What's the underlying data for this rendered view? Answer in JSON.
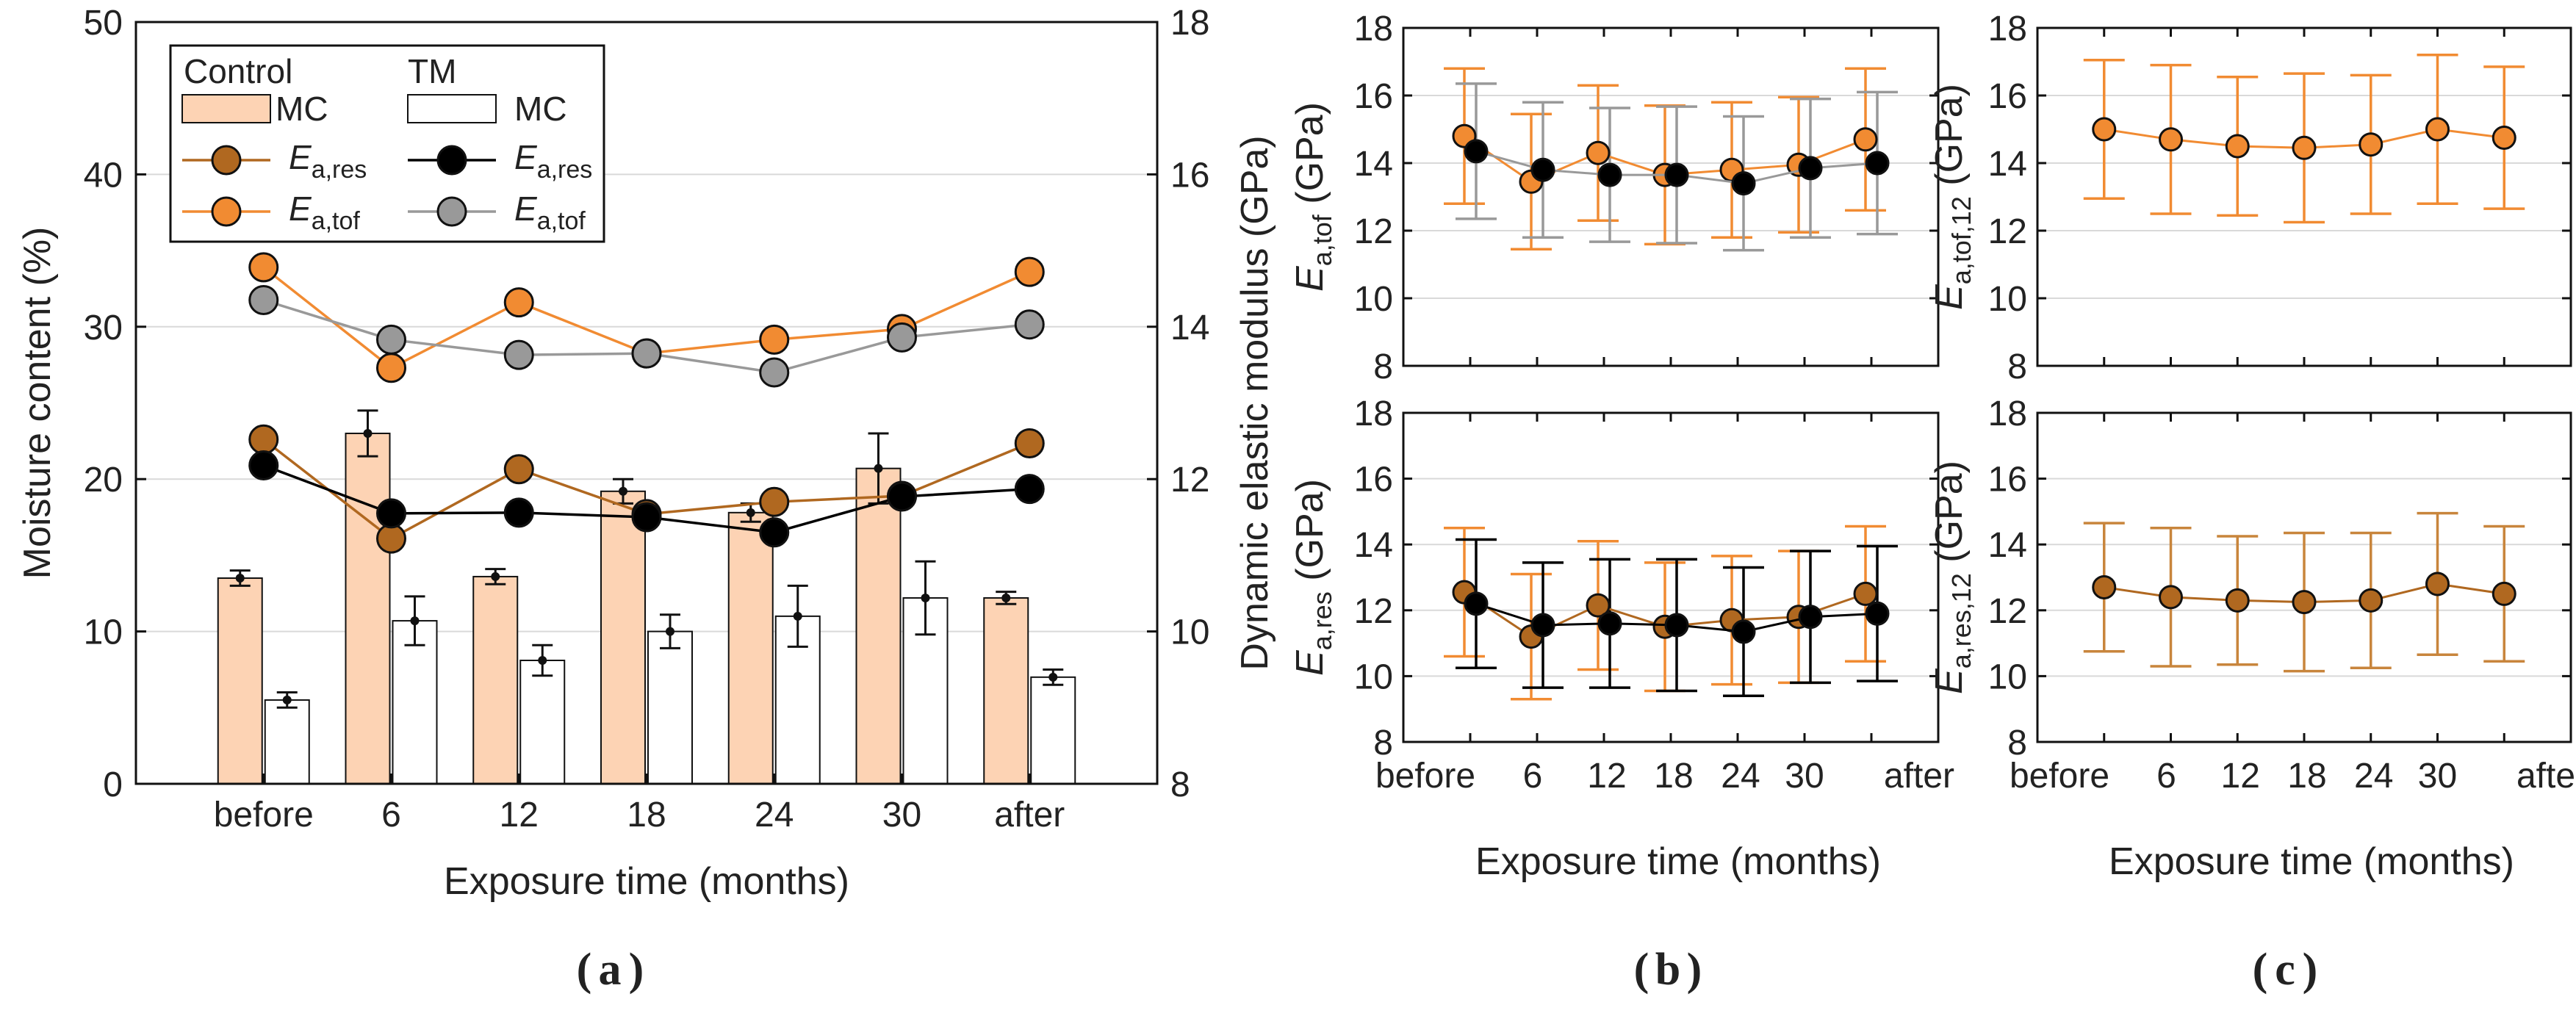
{
  "colors": {
    "control_mc_fill": "#fdd3b4",
    "tm_mc_fill": "#ffffff",
    "control_res": "#b06820",
    "control_tof": "#f18b32",
    "tm_res": "#000000",
    "tm_tof": "#999999",
    "grid": "#d9d9d9"
  },
  "panel_labels": {
    "a": "a",
    "b": "b",
    "c": "c"
  },
  "chart_data": [
    {
      "id": "a",
      "type": "bar",
      "categories": [
        "before",
        "6",
        "12",
        "18",
        "24",
        "30",
        "after"
      ],
      "xlabel": "Exposure time (months)",
      "ylabel_left": "Moisture content (%)",
      "ylabel_right": "Dynamic elastic modulus (GPa)",
      "ylim_left": [
        0,
        50
      ],
      "yticks_left": [
        "0",
        "10",
        "20",
        "30",
        "40",
        "50"
      ],
      "ylim_right": [
        8,
        18
      ],
      "yticks_right": [
        "8",
        "10",
        "12",
        "14",
        "16",
        "18"
      ],
      "legend": {
        "group_control": "Control",
        "group_tm": "TM",
        "mc": "MC",
        "e_res_base": "E",
        "e_res_sub": "a,res",
        "e_tof_base": "E",
        "e_tof_sub": "a,tof"
      },
      "bars": [
        {
          "name": "Control MC",
          "values": [
            13.5,
            23.0,
            13.6,
            19.2,
            17.8,
            20.7,
            12.2
          ],
          "err": [
            0.5,
            1.5,
            0.5,
            0.8,
            0.6,
            2.3,
            0.4
          ]
        },
        {
          "name": "TM MC",
          "values": [
            5.5,
            10.7,
            8.1,
            10.0,
            11.0,
            12.2,
            7.0
          ],
          "err": [
            0.5,
            1.6,
            1.0,
            1.1,
            2.0,
            2.4,
            0.5
          ]
        }
      ],
      "series": [
        {
          "name": "Control E_a,res",
          "values": [
            12.52,
            11.22,
            12.13,
            11.54,
            11.7,
            11.78,
            12.47
          ]
        },
        {
          "name": "Control E_a,tof",
          "values": [
            14.78,
            13.46,
            14.32,
            13.65,
            13.83,
            13.97,
            14.72
          ]
        },
        {
          "name": "TM E_a,res",
          "values": [
            12.18,
            11.55,
            11.56,
            11.5,
            11.3,
            11.77,
            11.87
          ]
        },
        {
          "name": "TM E_a,tof",
          "values": [
            14.35,
            13.83,
            13.63,
            13.65,
            13.4,
            13.86,
            14.03
          ]
        }
      ]
    },
    {
      "id": "b_top",
      "type": "line",
      "categories": [
        "before",
        "6",
        "12",
        "18",
        "24",
        "30",
        "after"
      ],
      "ylabel_base": "E",
      "ylabel_sub": "a,tof",
      "ylabel_unit": " (GPa)",
      "ylim": [
        8,
        18
      ],
      "yticks": [
        "8",
        "10",
        "12",
        "14",
        "16",
        "18"
      ],
      "series": [
        {
          "name": "Control",
          "values": [
            14.8,
            13.45,
            14.3,
            13.65,
            13.8,
            13.95,
            14.7
          ],
          "err": [
            2.0,
            2.0,
            2.0,
            2.05,
            2.0,
            2.0,
            2.1
          ]
        },
        {
          "name": "TM",
          "values": [
            14.35,
            13.8,
            13.65,
            13.65,
            13.4,
            13.85,
            14.0
          ],
          "err": [
            2.0,
            2.0,
            1.98,
            2.02,
            1.98,
            2.05,
            2.1
          ]
        }
      ]
    },
    {
      "id": "b_bottom",
      "type": "line",
      "categories": [
        "before",
        "6",
        "12",
        "18",
        "24",
        "30",
        "after"
      ],
      "xticklabels": [
        "before",
        "6",
        "12",
        "18",
        "24",
        "30",
        "after"
      ],
      "xlabel": "Exposure time (months)",
      "ylabel_base": "E",
      "ylabel_sub": "a,res",
      "ylabel_unit": " (GPa)",
      "ylim": [
        8,
        18
      ],
      "yticks": [
        "8",
        "10",
        "12",
        "14",
        "16",
        "18"
      ],
      "series": [
        {
          "name": "Control",
          "values": [
            12.55,
            11.2,
            12.15,
            11.5,
            11.7,
            11.8,
            12.5
          ],
          "err": [
            1.95,
            1.9,
            1.95,
            1.95,
            1.95,
            2.0,
            2.05
          ]
        },
        {
          "name": "TM",
          "values": [
            12.2,
            11.55,
            11.6,
            11.55,
            11.35,
            11.8,
            11.9
          ],
          "err": [
            1.95,
            1.9,
            1.95,
            2.0,
            1.95,
            2.0,
            2.05
          ]
        }
      ]
    },
    {
      "id": "c_top",
      "type": "line",
      "categories": [
        "before",
        "6",
        "12",
        "18",
        "24",
        "30",
        "after"
      ],
      "ylabel_base": "E",
      "ylabel_sub": "a,tof,12",
      "ylabel_unit": " (GPa)",
      "ylim": [
        8,
        18
      ],
      "yticks": [
        "8",
        "10",
        "12",
        "14",
        "16",
        "18"
      ],
      "series": [
        {
          "name": "Control",
          "values": [
            15.0,
            14.7,
            14.5,
            14.45,
            14.55,
            15.0,
            14.75
          ],
          "err": [
            2.05,
            2.2,
            2.05,
            2.2,
            2.05,
            2.2,
            2.1
          ]
        }
      ]
    },
    {
      "id": "c_bottom",
      "type": "line",
      "categories": [
        "before",
        "6",
        "12",
        "18",
        "24",
        "30",
        "after"
      ],
      "xticklabels": [
        "before",
        "6",
        "12",
        "18",
        "24",
        "30",
        "after"
      ],
      "xlabel": "Exposure time (months)",
      "ylabel_base": "E",
      "ylabel_sub": "a,res,12",
      "ylabel_unit": " (GPa)",
      "ylim": [
        8,
        18
      ],
      "yticks": [
        "8",
        "10",
        "12",
        "14",
        "16",
        "18"
      ],
      "series": [
        {
          "name": "Control",
          "values": [
            12.7,
            12.4,
            12.3,
            12.25,
            12.3,
            12.8,
            12.5
          ],
          "err": [
            1.95,
            2.1,
            1.95,
            2.1,
            2.05,
            2.15,
            2.05
          ]
        }
      ]
    }
  ]
}
